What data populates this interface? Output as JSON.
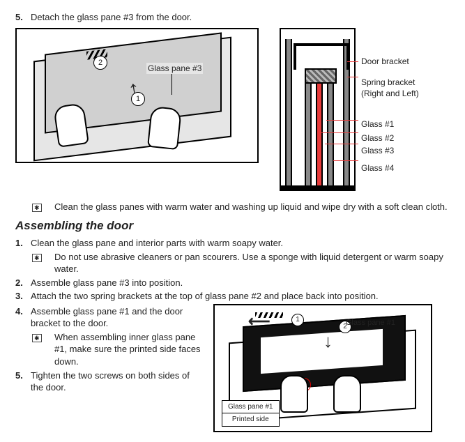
{
  "top": {
    "step5_num": "5.",
    "step5_text": "Detach the glass pane #3 from the door.",
    "fig_left": {
      "circ1": "1",
      "circ2": "2",
      "pane_label": "Glass pane #3"
    },
    "fig_right": {
      "door_bracket": "Door bracket",
      "spring_bracket_l1": "Spring bracket",
      "spring_bracket_l2": "(Right and Left)",
      "g1": "Glass #1",
      "g2": "Glass #2",
      "g3": "Glass #3",
      "g4": "Glass #4"
    },
    "note": "Clean the glass panes with warm water and washing up liquid and wipe dry with a soft clean cloth."
  },
  "assembling": {
    "title": "Assembling the door",
    "s1_num": "1.",
    "s1_text": "Clean the glass pane and interior parts with warm soapy water.",
    "s1_note": "Do not use abrasive cleaners or pan scourers. Use a sponge with liquid detergent or warm soapy water.",
    "s2_num": "2.",
    "s2_text": "Assemble glass pane #3 into position.",
    "s3_num": "3.",
    "s3_text": "Attach the two spring brackets at the top of glass pane #2 and place back into position.",
    "s4_num": "4.",
    "s4_text": "Assemble glass pane #1 and the door bracket to the door.",
    "s4_note": "When assembling inner glass pane #1, make sure the printed side faces down.",
    "s5_num": "5.",
    "s5_text": "Tighten the two screws on both sides of the door.",
    "fig": {
      "circ1": "1",
      "circ2": "2",
      "pane_label": "Glass pane #1",
      "callout_top": "Glass pane #1",
      "callout_bottom": "Printed side"
    }
  },
  "colors": {
    "red": "#e83b3b",
    "text": "#222222"
  }
}
